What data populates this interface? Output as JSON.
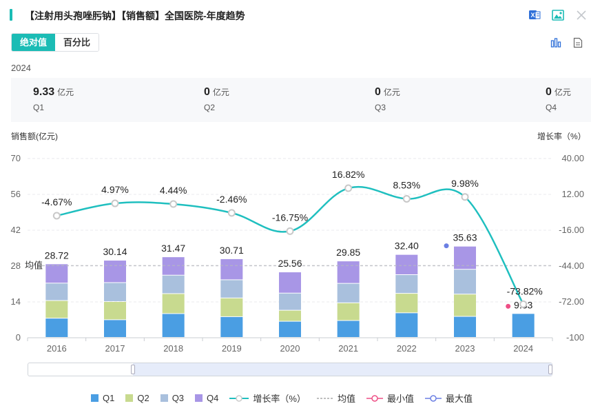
{
  "header": {
    "title": "【注射用头孢唑肟钠】【销售额】全国医院-年度趋势"
  },
  "toggle": {
    "absolute_label": "绝对值",
    "percent_label": "百分比"
  },
  "summary": {
    "year": "2024",
    "quarters": [
      {
        "value": "9.33",
        "unit": "亿元",
        "name": "Q1"
      },
      {
        "value": "0",
        "unit": "亿元",
        "name": "Q2"
      },
      {
        "value": "0",
        "unit": "亿元",
        "name": "Q3"
      },
      {
        "value": "0",
        "unit": "亿元",
        "name": "Q4"
      }
    ]
  },
  "chart_data": {
    "type": "bar",
    "stacked": true,
    "categories": [
      "2016",
      "2017",
      "2018",
      "2019",
      "2020",
      "2021",
      "2022",
      "2023",
      "2024"
    ],
    "series": [
      {
        "name": "Q1",
        "color": "#4a9ee3",
        "values": [
          7.5,
          6.9,
          9.3,
          8.1,
          6.3,
          6.6,
          9.6,
          8.2,
          9.33
        ]
      },
      {
        "name": "Q2",
        "color": "#c8da8f",
        "values": [
          6.9,
          7.1,
          7.8,
          7.3,
          4.3,
          6.9,
          7.6,
          8.7,
          0
        ]
      },
      {
        "name": "Q3",
        "color": "#a9c0dd",
        "values": [
          6.8,
          7.4,
          7.2,
          7.1,
          6.7,
          7.6,
          7.3,
          9.7,
          0
        ]
      },
      {
        "name": "Q4",
        "color": "#a896e6",
        "values": [
          7.52,
          8.74,
          7.17,
          8.21,
          8.26,
          8.75,
          7.9,
          9.03,
          0
        ]
      }
    ],
    "totals": [
      28.72,
      30.14,
      31.47,
      30.71,
      25.56,
      29.85,
      32.4,
      35.63,
      9.33
    ],
    "total_labels": [
      "28.72",
      "30.14",
      "31.47",
      "30.71",
      "25.56",
      "29.85",
      "32.40",
      "35.63",
      "9.33"
    ],
    "growth": {
      "name": "增长率（%）",
      "color": "#1fbfbf",
      "values": [
        -4.67,
        4.97,
        4.44,
        -2.46,
        -16.75,
        16.82,
        8.53,
        9.98,
        -73.82
      ],
      "labels": [
        "-4.67%",
        "4.97%",
        "4.44%",
        "-2.46%",
        "-16.75%",
        "16.82%",
        "8.53%",
        "9.98%",
        "-73.82%"
      ]
    },
    "average": {
      "value": 28.2,
      "label": "均值"
    },
    "min_marker": {
      "category": "2024",
      "value": 9.33,
      "color": "#ee4f86"
    },
    "max_marker": {
      "category": "2023",
      "value": 35.63,
      "color": "#6b7fe3"
    },
    "ylabel": "销售额(亿元)",
    "ylim": [
      0,
      70
    ],
    "yticks": [
      0,
      14,
      28,
      42,
      56,
      70
    ],
    "ytick_labels": [
      "0",
      "14",
      "28",
      "42",
      "56",
      "70"
    ],
    "y2label": "增长率（%）",
    "y2lim": [
      -100,
      40
    ],
    "y2ticks": [
      -100,
      -72,
      -44,
      -16,
      12,
      40
    ],
    "y2tick_labels": [
      "-100",
      "-72.00",
      "-44.00",
      "-16.00",
      "12.00",
      "40.00"
    ]
  },
  "legend": {
    "q1": "Q1",
    "q2": "Q2",
    "q3": "Q3",
    "q4": "Q4",
    "growth": "增长率（%）",
    "average": "均值",
    "min": "最小值",
    "max": "最大值"
  }
}
